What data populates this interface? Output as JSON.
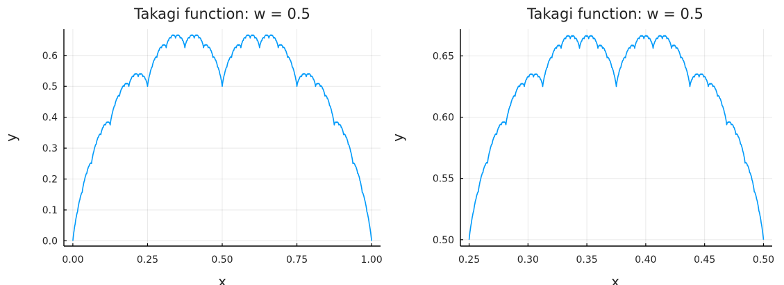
{
  "chart_data": [
    {
      "type": "line",
      "title": "Takagi function: w = 0.5",
      "xlabel": "x",
      "ylabel": "y",
      "xlim": [
        -0.03,
        1.03
      ],
      "ylim": [
        -0.017,
        0.685
      ],
      "xticks": [
        0.0,
        0.25,
        0.5,
        0.75,
        1.0
      ],
      "xtick_labels": [
        "0.00",
        "0.25",
        "0.50",
        "0.75",
        "1.00"
      ],
      "yticks": [
        0.0,
        0.1,
        0.2,
        0.3,
        0.4,
        0.5,
        0.6
      ],
      "ytick_labels": [
        "0.0",
        "0.1",
        "0.2",
        "0.3",
        "0.4",
        "0.5",
        "0.6"
      ],
      "grid": true,
      "legend": "none",
      "series": [
        {
          "color": "#009AFA",
          "function": "takagi",
          "w": 0.5,
          "x_range": [
            0.0,
            1.0
          ],
          "samples": 1024
        }
      ]
    },
    {
      "type": "line",
      "title": "Takagi function: w = 0.5",
      "xlabel": "x",
      "ylabel": "y",
      "xlim": [
        0.2426,
        0.5074
      ],
      "ylim": [
        0.4948,
        0.6718
      ],
      "xticks": [
        0.25,
        0.3,
        0.35,
        0.4,
        0.45,
        0.5
      ],
      "xtick_labels": [
        "0.25",
        "0.30",
        "0.35",
        "0.40",
        "0.45",
        "0.50"
      ],
      "yticks": [
        0.5,
        0.55,
        0.6,
        0.65
      ],
      "ytick_labels": [
        "0.50",
        "0.55",
        "0.60",
        "0.65"
      ],
      "grid": true,
      "legend": "none",
      "series": [
        {
          "color": "#009AFA",
          "function": "takagi",
          "w": 0.5,
          "x_range": [
            0.25,
            0.5
          ],
          "samples": 1024
        }
      ]
    }
  ]
}
